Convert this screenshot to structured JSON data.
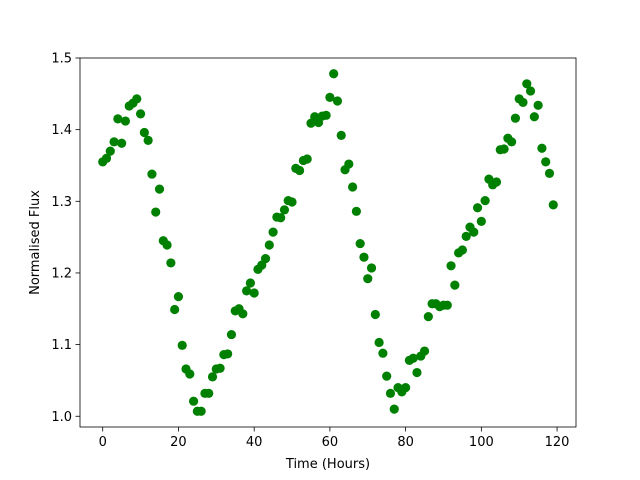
{
  "chart_data": {
    "type": "scatter",
    "title": "",
    "xlabel": "Time (Hours)",
    "ylabel": "Normalised Flux",
    "xlim": [
      -6,
      125
    ],
    "ylim": [
      0.985,
      1.5
    ],
    "xticks": [
      0,
      20,
      40,
      60,
      80,
      100,
      120
    ],
    "yticks": [
      1.0,
      1.1,
      1.2,
      1.3,
      1.4,
      1.5
    ],
    "xtick_labels": [
      "0",
      "20",
      "40",
      "60",
      "80",
      "100",
      "120"
    ],
    "ytick_labels": [
      "1.0",
      "1.1",
      "1.2",
      "1.3",
      "1.4",
      "1.5"
    ],
    "grid": false,
    "marker_color": "#008000",
    "series": [
      {
        "x": [
          0,
          1,
          2,
          3,
          4,
          5,
          6,
          7,
          8,
          9,
          10,
          11,
          12,
          13,
          14,
          15,
          16,
          17,
          18,
          19,
          20,
          21,
          22,
          23,
          24,
          25,
          26,
          27,
          28,
          29,
          30,
          31,
          32,
          33,
          34,
          35,
          36,
          37,
          38,
          39,
          40,
          41,
          42,
          43,
          44,
          45,
          46,
          47,
          48,
          49,
          50,
          51,
          52,
          53,
          54,
          55,
          56,
          57,
          58,
          59,
          60,
          61,
          62,
          63,
          64,
          65,
          66,
          67,
          68,
          69,
          70,
          71,
          72,
          73,
          74,
          75,
          76,
          77,
          78,
          79,
          80,
          81,
          82,
          83,
          84,
          85,
          86,
          87,
          88,
          89,
          90,
          91,
          92,
          93,
          94,
          95,
          96,
          97,
          98,
          99,
          100,
          101,
          102,
          103,
          104,
          105,
          106,
          107,
          108,
          109,
          110,
          111,
          112,
          113,
          114,
          115,
          116,
          117,
          118,
          119
        ],
        "y": [
          1.355,
          1.36,
          1.37,
          1.383,
          1.415,
          1.381,
          1.412,
          1.433,
          1.437,
          1.443,
          1.422,
          1.396,
          1.385,
          1.338,
          1.285,
          1.317,
          1.245,
          1.239,
          1.214,
          1.149,
          1.167,
          1.099,
          1.066,
          1.059,
          1.021,
          1.007,
          1.007,
          1.032,
          1.032,
          1.055,
          1.066,
          1.067,
          1.086,
          1.087,
          1.114,
          1.147,
          1.15,
          1.143,
          1.175,
          1.186,
          1.172,
          1.205,
          1.211,
          1.22,
          1.239,
          1.257,
          1.278,
          1.277,
          1.288,
          1.301,
          1.299,
          1.346,
          1.343,
          1.357,
          1.359,
          1.409,
          1.418,
          1.41,
          1.419,
          1.42,
          1.445,
          1.478,
          1.44,
          1.392,
          1.344,
          1.352,
          1.32,
          1.286,
          1.241,
          1.222,
          1.192,
          1.207,
          1.142,
          1.103,
          1.088,
          1.056,
          1.032,
          1.01,
          1.04,
          1.034,
          1.04,
          1.078,
          1.081,
          1.061,
          1.084,
          1.091,
          1.139,
          1.157,
          1.157,
          1.153,
          1.155,
          1.155,
          1.21,
          1.183,
          1.228,
          1.232,
          1.251,
          1.264,
          1.257,
          1.291,
          1.272,
          1.301,
          1.331,
          1.323,
          1.327,
          1.372,
          1.373,
          1.388,
          1.383,
          1.416,
          1.443,
          1.438,
          1.464,
          1.454,
          1.418,
          1.434,
          1.374,
          1.355,
          1.339,
          1.295
        ]
      }
    ]
  }
}
